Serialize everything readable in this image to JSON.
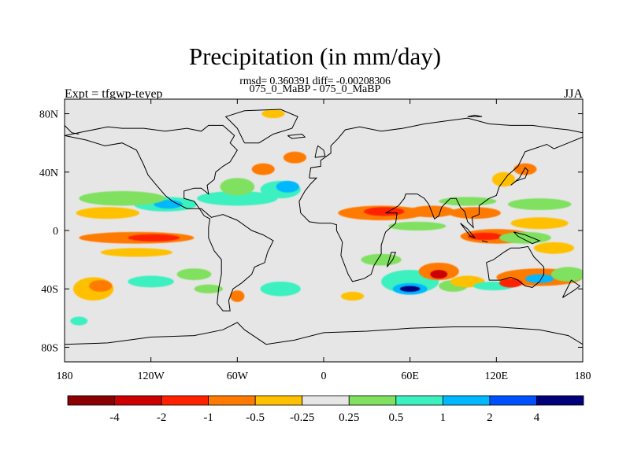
{
  "title": "Precipitation (in mm/day)",
  "stats_line": "rmsd= 0.360391 diff= -0.00208306",
  "case_line": "075_0_MaBP - 075_0_MaBP",
  "experiment": "Expt = tfgwp-teyep",
  "season": "JJA",
  "colors": {
    "background": "#e6e6e6",
    "coast": "#000000"
  },
  "map": {
    "lon_range": [
      -180,
      180
    ],
    "lat_range": [
      -90,
      90
    ],
    "x_ticks": [
      {
        "value": -180,
        "label": "180"
      },
      {
        "value": -120,
        "label": "120W"
      },
      {
        "value": -60,
        "label": "60W"
      },
      {
        "value": 0,
        "label": "0"
      },
      {
        "value": 60,
        "label": "60E"
      },
      {
        "value": 120,
        "label": "120E"
      },
      {
        "value": 180,
        "label": "180"
      }
    ],
    "y_ticks": [
      {
        "value": 80,
        "label": "80N"
      },
      {
        "value": 40,
        "label": "40N"
      },
      {
        "value": 0,
        "label": "0"
      },
      {
        "value": -40,
        "label": "40S"
      },
      {
        "value": -80,
        "label": "80S"
      }
    ]
  },
  "colorbar": {
    "colors": [
      "#8b0000",
      "#cc0000",
      "#ff2000",
      "#ff7a00",
      "#ffc000",
      "#e6e6e6",
      "#80e060",
      "#3cf0c0",
      "#00b8ff",
      "#0050ff",
      "#00007a"
    ],
    "labels": [
      "-4",
      "-2",
      "-1",
      "-0.5",
      "-0.25",
      "0.25",
      "0.5",
      "1",
      "2",
      "4"
    ]
  },
  "anomalies": [
    {
      "lon": -130,
      "lat": -5,
      "rlon": 40,
      "rlat": 4,
      "level": 3
    },
    {
      "lon": -118,
      "lat": -5,
      "rlon": 18,
      "rlat": 2.5,
      "level": 2
    },
    {
      "lon": -130,
      "lat": -15,
      "rlon": 25,
      "rlat": 3,
      "level": 4
    },
    {
      "lon": -110,
      "lat": 18,
      "rlon": 22,
      "rlat": 5,
      "level": 7
    },
    {
      "lon": -108,
      "lat": 18,
      "rlon": 10,
      "rlat": 3,
      "level": 8
    },
    {
      "lon": -60,
      "lat": 22,
      "rlon": 28,
      "rlat": 5,
      "level": 7
    },
    {
      "lon": -150,
      "lat": 12,
      "rlon": 22,
      "rlat": 4,
      "level": 4
    },
    {
      "lon": -140,
      "lat": 22,
      "rlon": 30,
      "rlat": 5,
      "level": 6
    },
    {
      "lon": -60,
      "lat": 30,
      "rlon": 12,
      "rlat": 6,
      "level": 6
    },
    {
      "lon": -30,
      "lat": 28,
      "rlon": 14,
      "rlat": 6,
      "level": 7
    },
    {
      "lon": -25,
      "lat": 30,
      "rlon": 8,
      "rlat": 4,
      "level": 8
    },
    {
      "lon": -42,
      "lat": 42,
      "rlon": 8,
      "rlat": 4,
      "level": 3
    },
    {
      "lon": -20,
      "lat": 50,
      "rlon": 8,
      "rlat": 4,
      "level": 3
    },
    {
      "lon": -35,
      "lat": 80,
      "rlon": 8,
      "rlat": 3,
      "level": 4
    },
    {
      "lon": 40,
      "lat": 12,
      "rlon": 30,
      "rlat": 5,
      "level": 3
    },
    {
      "lon": 42,
      "lat": 13,
      "rlon": 14,
      "rlat": 3,
      "level": 2
    },
    {
      "lon": 75,
      "lat": 13,
      "rlon": 16,
      "rlat": 4,
      "level": 3
    },
    {
      "lon": 105,
      "lat": 12,
      "rlon": 18,
      "rlat": 4,
      "level": 3
    },
    {
      "lon": 100,
      "lat": 20,
      "rlon": 20,
      "rlat": 3,
      "level": 6
    },
    {
      "lon": 125,
      "lat": 35,
      "rlon": 8,
      "rlat": 5,
      "level": 4
    },
    {
      "lon": 140,
      "lat": 42,
      "rlon": 8,
      "rlat": 4,
      "level": 3
    },
    {
      "lon": 150,
      "lat": 18,
      "rlon": 22,
      "rlat": 4,
      "level": 6
    },
    {
      "lon": 65,
      "lat": 3,
      "rlon": 20,
      "rlat": 3,
      "level": 6
    },
    {
      "lon": 120,
      "lat": -4,
      "rlon": 25,
      "rlat": 5,
      "level": 3
    },
    {
      "lon": 112,
      "lat": -4,
      "rlon": 12,
      "rlat": 2.5,
      "level": 2
    },
    {
      "lon": 150,
      "lat": 5,
      "rlon": 20,
      "rlat": 4,
      "level": 4
    },
    {
      "lon": 140,
      "lat": -5,
      "rlon": 18,
      "rlat": 4,
      "level": 6
    },
    {
      "lon": 160,
      "lat": -12,
      "rlon": 14,
      "rlat": 4,
      "level": 4
    },
    {
      "lon": -160,
      "lat": -40,
      "rlon": 14,
      "rlat": 8,
      "level": 4
    },
    {
      "lon": -155,
      "lat": -38,
      "rlon": 8,
      "rlat": 4,
      "level": 3
    },
    {
      "lon": -120,
      "lat": -35,
      "rlon": 16,
      "rlat": 4,
      "level": 7
    },
    {
      "lon": -90,
      "lat": -30,
      "rlon": 12,
      "rlat": 4,
      "level": 6
    },
    {
      "lon": -80,
      "lat": -40,
      "rlon": 10,
      "rlat": 3,
      "level": 6
    },
    {
      "lon": -60,
      "lat": -45,
      "rlon": 5,
      "rlat": 4,
      "level": 3
    },
    {
      "lon": -30,
      "lat": -40,
      "rlon": 14,
      "rlat": 5,
      "level": 7
    },
    {
      "lon": 20,
      "lat": -45,
      "rlon": 8,
      "rlat": 3,
      "level": 4
    },
    {
      "lon": 40,
      "lat": -20,
      "rlon": 14,
      "rlat": 4,
      "level": 6
    },
    {
      "lon": 60,
      "lat": -35,
      "rlon": 20,
      "rlat": 8,
      "level": 7
    },
    {
      "lon": 60,
      "lat": -40,
      "rlon": 12,
      "rlat": 4,
      "level": 8
    },
    {
      "lon": 60,
      "lat": -40,
      "rlon": 7,
      "rlat": 2,
      "level": 10
    },
    {
      "lon": 80,
      "lat": -28,
      "rlon": 14,
      "rlat": 6,
      "level": 3
    },
    {
      "lon": 80,
      "lat": -30,
      "rlon": 6,
      "rlat": 3,
      "level": 1
    },
    {
      "lon": 90,
      "lat": -38,
      "rlon": 10,
      "rlat": 4,
      "level": 6
    },
    {
      "lon": 100,
      "lat": -35,
      "rlon": 12,
      "rlat": 4,
      "level": 4
    },
    {
      "lon": 150,
      "lat": -32,
      "rlon": 30,
      "rlat": 6,
      "level": 3
    },
    {
      "lon": 150,
      "lat": -33,
      "rlon": 10,
      "rlat": 3,
      "level": 8
    },
    {
      "lon": 170,
      "lat": -30,
      "rlon": 12,
      "rlat": 5,
      "level": 6
    },
    {
      "lon": -170,
      "lat": -62,
      "rlon": 6,
      "rlat": 3,
      "level": 7
    },
    {
      "lon": 118,
      "lat": -38,
      "rlon": 14,
      "rlat": 3,
      "level": 7
    },
    {
      "lon": 130,
      "lat": -36,
      "rlon": 8,
      "rlat": 3,
      "level": 2
    }
  ],
  "coastlines": [
    [
      [
        -180,
        65
      ],
      [
        -165,
        68
      ],
      [
        -150,
        71
      ],
      [
        -140,
        70
      ],
      [
        -125,
        70
      ],
      [
        -110,
        68
      ],
      [
        -95,
        70
      ],
      [
        -85,
        68
      ],
      [
        -80,
        72
      ],
      [
        -70,
        72
      ],
      [
        -62,
        65
      ],
      [
        -65,
        60
      ],
      [
        -60,
        55
      ],
      [
        -65,
        47
      ],
      [
        -70,
        44
      ],
      [
        -75,
        40
      ],
      [
        -76,
        35
      ],
      [
        -81,
        31
      ],
      [
        -80,
        25
      ],
      [
        -85,
        29
      ],
      [
        -90,
        29
      ],
      [
        -97,
        27
      ],
      [
        -97,
        22
      ],
      [
        -90,
        20
      ],
      [
        -87,
        16
      ],
      [
        -83,
        10
      ],
      [
        -79,
        8
      ],
      [
        -80,
        2
      ],
      [
        -80,
        -5
      ],
      [
        -76,
        -14
      ],
      [
        -71,
        -20
      ],
      [
        -71,
        -30
      ],
      [
        -73,
        -40
      ],
      [
        -74,
        -50
      ],
      [
        -70,
        -55
      ],
      [
        -65,
        -55
      ],
      [
        -66,
        -48
      ],
      [
        -63,
        -40
      ],
      [
        -57,
        -36
      ],
      [
        -50,
        -30
      ],
      [
        -48,
        -25
      ],
      [
        -41,
        -22
      ],
      [
        -39,
        -15
      ],
      [
        -35,
        -7
      ],
      [
        -42,
        -3
      ],
      [
        -50,
        0
      ],
      [
        -60,
        7
      ],
      [
        -70,
        11
      ],
      [
        -78,
        9
      ],
      [
        -85,
        15
      ],
      [
        -95,
        15
      ],
      [
        -105,
        20
      ],
      [
        -110,
        24
      ],
      [
        -117,
        32
      ],
      [
        -122,
        38
      ],
      [
        -125,
        45
      ],
      [
        -130,
        55
      ],
      [
        -140,
        60
      ],
      [
        -152,
        58
      ],
      [
        -165,
        62
      ],
      [
        -180,
        65
      ]
    ],
    [
      [
        -55,
        60
      ],
      [
        -45,
        60
      ],
      [
        -35,
        66
      ],
      [
        -22,
        70
      ],
      [
        -18,
        78
      ],
      [
        -30,
        83
      ],
      [
        -55,
        82
      ],
      [
        -68,
        78
      ],
      [
        -60,
        70
      ],
      [
        -55,
        60
      ]
    ],
    [
      [
        -10,
        36
      ],
      [
        -9,
        43
      ],
      [
        -2,
        44
      ],
      [
        -2,
        48
      ],
      [
        5,
        53
      ],
      [
        5,
        58
      ],
      [
        10,
        63
      ],
      [
        15,
        69
      ],
      [
        25,
        71
      ],
      [
        40,
        68
      ],
      [
        55,
        70
      ],
      [
        70,
        73
      ],
      [
        85,
        75
      ],
      [
        100,
        77
      ],
      [
        115,
        73
      ],
      [
        130,
        72
      ],
      [
        145,
        72
      ],
      [
        160,
        70
      ],
      [
        170,
        69
      ],
      [
        180,
        67
      ],
      [
        180,
        64
      ],
      [
        170,
        60
      ],
      [
        160,
        56
      ],
      [
        155,
        59
      ],
      [
        140,
        54
      ],
      [
        135,
        44
      ],
      [
        128,
        38
      ],
      [
        122,
        30
      ],
      [
        120,
        24
      ],
      [
        115,
        22
      ],
      [
        108,
        17
      ],
      [
        108,
        11
      ],
      [
        103,
        9
      ],
      [
        104,
        2
      ],
      [
        100,
        6
      ],
      [
        98,
        13
      ],
      [
        95,
        16
      ],
      [
        92,
        22
      ],
      [
        88,
        22
      ],
      [
        82,
        16
      ],
      [
        80,
        10
      ],
      [
        77,
        8
      ],
      [
        73,
        18
      ],
      [
        70,
        22
      ],
      [
        65,
        25
      ],
      [
        57,
        25
      ],
      [
        56,
        22
      ],
      [
        52,
        17
      ],
      [
        45,
        13
      ],
      [
        43,
        12
      ],
      [
        51,
        12
      ],
      [
        50,
        5
      ],
      [
        43,
        -1
      ],
      [
        40,
        -10
      ],
      [
        40,
        -16
      ],
      [
        35,
        -24
      ],
      [
        33,
        -30
      ],
      [
        28,
        -33
      ],
      [
        20,
        -35
      ],
      [
        17,
        -30
      ],
      [
        12,
        -17
      ],
      [
        13,
        -8
      ],
      [
        9,
        0
      ],
      [
        9,
        4
      ],
      [
        5,
        5
      ],
      [
        -3,
        5
      ],
      [
        -10,
        6
      ],
      [
        -16,
        12
      ],
      [
        -17,
        20
      ],
      [
        -13,
        27
      ],
      [
        -9,
        32
      ],
      [
        -5,
        36
      ],
      [
        -10,
        36
      ]
    ],
    [
      [
        113,
        -22
      ],
      [
        114,
        -27
      ],
      [
        115,
        -34
      ],
      [
        123,
        -34
      ],
      [
        130,
        -32
      ],
      [
        135,
        -34
      ],
      [
        140,
        -38
      ],
      [
        145,
        -39
      ],
      [
        150,
        -35
      ],
      [
        153,
        -30
      ],
      [
        153,
        -25
      ],
      [
        146,
        -18
      ],
      [
        142,
        -11
      ],
      [
        136,
        -12
      ],
      [
        130,
        -12
      ],
      [
        125,
        -15
      ],
      [
        118,
        -20
      ],
      [
        113,
        -22
      ]
    ],
    [
      [
        -180,
        -78
      ],
      [
        -150,
        -77
      ],
      [
        -120,
        -73
      ],
      [
        -90,
        -72
      ],
      [
        -70,
        -68
      ],
      [
        -60,
        -63
      ],
      [
        -55,
        -68
      ],
      [
        -40,
        -78
      ],
      [
        -20,
        -75
      ],
      [
        0,
        -70
      ],
      [
        30,
        -69
      ],
      [
        60,
        -67
      ],
      [
        90,
        -66
      ],
      [
        120,
        -66
      ],
      [
        150,
        -68
      ],
      [
        170,
        -72
      ],
      [
        180,
        -78
      ]
    ],
    [
      [
        -6,
        50
      ],
      [
        -5,
        55
      ],
      [
        -4,
        58
      ],
      [
        0,
        55
      ],
      [
        1,
        51
      ],
      [
        -6,
        50
      ]
    ],
    [
      [
        130,
        31
      ],
      [
        134,
        34
      ],
      [
        140,
        36
      ],
      [
        142,
        41
      ],
      [
        140,
        43
      ],
      [
        136,
        36
      ],
      [
        130,
        31
      ]
    ],
    [
      [
        95,
        5
      ],
      [
        100,
        1
      ],
      [
        105,
        -5
      ],
      [
        102,
        -4
      ],
      [
        95,
        5
      ]
    ],
    [
      [
        110,
        -7
      ],
      [
        114,
        -8
      ],
      [
        110,
        -7
      ]
    ],
    [
      [
        132,
        -1
      ],
      [
        140,
        -3
      ],
      [
        150,
        -7
      ],
      [
        145,
        -9
      ],
      [
        135,
        -4
      ],
      [
        132,
        -1
      ]
    ],
    [
      [
        44,
        -25
      ],
      [
        48,
        -20
      ],
      [
        50,
        -15
      ],
      [
        47,
        -15
      ],
      [
        44,
        -25
      ]
    ],
    [
      [
        -25,
        65
      ],
      [
        -15,
        66
      ],
      [
        -13,
        64
      ],
      [
        -22,
        63
      ],
      [
        -25,
        65
      ]
    ],
    [
      [
        166,
        -46
      ],
      [
        174,
        -41
      ],
      [
        178,
        -38
      ],
      [
        172,
        -34
      ],
      [
        166,
        -46
      ]
    ],
    [
      [
        -180,
        72
      ],
      [
        -175,
        67
      ],
      [
        -170,
        66
      ]
    ],
    [
      [
        100,
        78
      ],
      [
        110,
        78
      ],
      [
        105,
        79
      ],
      [
        100,
        78
      ]
    ]
  ]
}
